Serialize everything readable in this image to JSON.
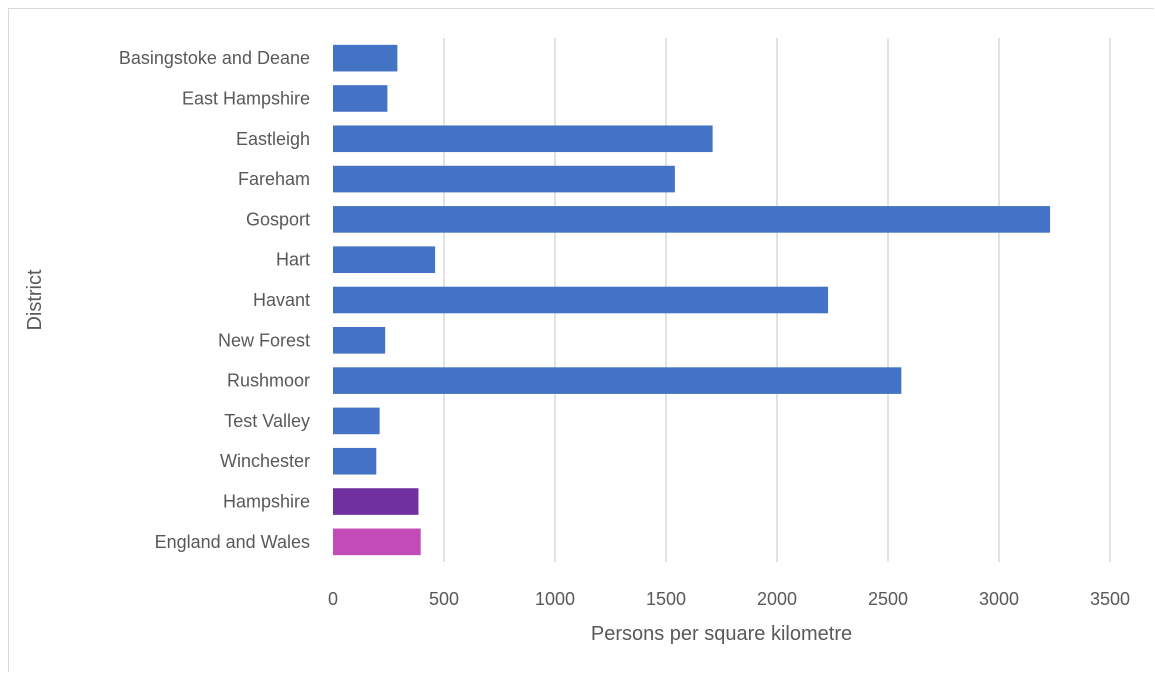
{
  "chart_data": {
    "type": "bar",
    "orientation": "horizontal",
    "title": "",
    "xlabel": "Persons per square kilometre",
    "ylabel": "District",
    "xlim": [
      0,
      3500
    ],
    "x_ticks": [
      0,
      500,
      1000,
      1500,
      2000,
      2500,
      3000,
      3500
    ],
    "grid": "vertical",
    "legend": "none",
    "categories": [
      "Basingstoke and Deane",
      "East Hampshire",
      "Eastleigh",
      "Fareham",
      "Gosport",
      "Hart",
      "Havant",
      "New Forest",
      "Rushmoor",
      "Test Valley",
      "Winchester",
      "Hampshire",
      "England and Wales"
    ],
    "values": [
      290,
      245,
      1710,
      1540,
      3230,
      460,
      2230,
      235,
      2560,
      210,
      195,
      385,
      395
    ],
    "colors": [
      "#4472c4",
      "#4472c4",
      "#4472c4",
      "#4472c4",
      "#4472c4",
      "#4472c4",
      "#4472c4",
      "#4472c4",
      "#4472c4",
      "#4472c4",
      "#4472c4",
      "#7030a0",
      "#c24bb8"
    ]
  }
}
